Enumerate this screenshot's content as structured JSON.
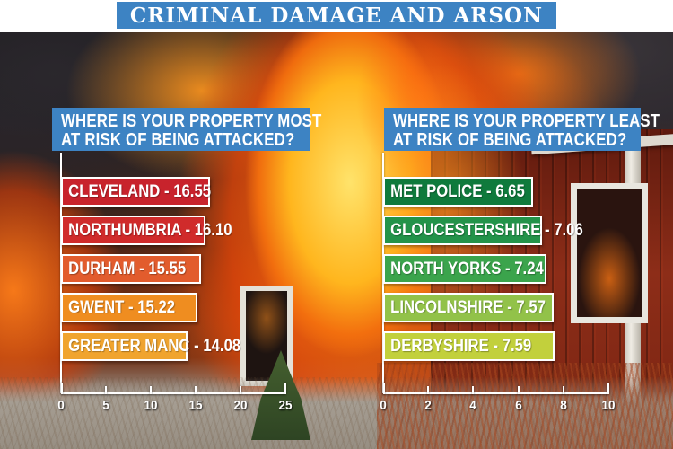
{
  "banner": {
    "title": "CRIMINAL DAMAGE AND ARSON"
  },
  "colors": {
    "banner_blue": "#3d83c3",
    "header_blue": "#3d83c3",
    "axis_white": "#ffffff"
  },
  "chart_data": [
    {
      "type": "bar",
      "orientation": "horizontal",
      "title_line1": "WHERE IS YOUR PROPERTY MOST",
      "title_line2": "AT RISK OF BEING ATTACKED?",
      "xlim": [
        0,
        25
      ],
      "ticks": [
        0,
        5,
        10,
        15,
        20,
        25
      ],
      "grid": false,
      "bars": [
        {
          "name": "CLEVELAND",
          "value": 16.55,
          "display": "CLEVELAND - 16.55",
          "color": "#c8232c"
        },
        {
          "name": "NORTHUMBRIA",
          "value": 16.1,
          "display": "NORTHUMBRIA - 16.10",
          "color": "#d02b2b"
        },
        {
          "name": "DURHAM",
          "value": 15.55,
          "display": "DURHAM - 15.55",
          "color": "#e25c2d"
        },
        {
          "name": "GWENT",
          "value": 15.22,
          "display": "GWENT - 15.22",
          "color": "#ef8d20"
        },
        {
          "name": "GREATER MANC",
          "value": 14.08,
          "display": "GREATER MANC - 14.08",
          "color": "#f0a42e"
        }
      ]
    },
    {
      "type": "bar",
      "orientation": "horizontal",
      "title_line1": "WHERE IS YOUR PROPERTY LEAST",
      "title_line2": "AT RISK OF BEING ATTACKED?",
      "xlim": [
        0,
        10
      ],
      "ticks": [
        0,
        2,
        4,
        6,
        8,
        10
      ],
      "grid": false,
      "bars": [
        {
          "name": "MET POLICE",
          "value": 6.65,
          "display": "MET POLICE - 6.65",
          "color": "#0f7a3c"
        },
        {
          "name": "GLOUCESTERSHIRE",
          "value": 7.06,
          "display": "GLOUCESTERSHIRE - 7.06",
          "color": "#23934a"
        },
        {
          "name": "NORTH YORKS",
          "value": 7.24,
          "display": "NORTH YORKS - 7.24",
          "color": "#3ba44c"
        },
        {
          "name": "LINCOLNSHIRE",
          "value": 7.57,
          "display": "LINCOLNSHIRE - 7.57",
          "color": "#92c249"
        },
        {
          "name": "DERBYSHIRE",
          "value": 7.59,
          "display": "DERBYSHIRE - 7.59",
          "color": "#c2d03c"
        }
      ]
    }
  ]
}
